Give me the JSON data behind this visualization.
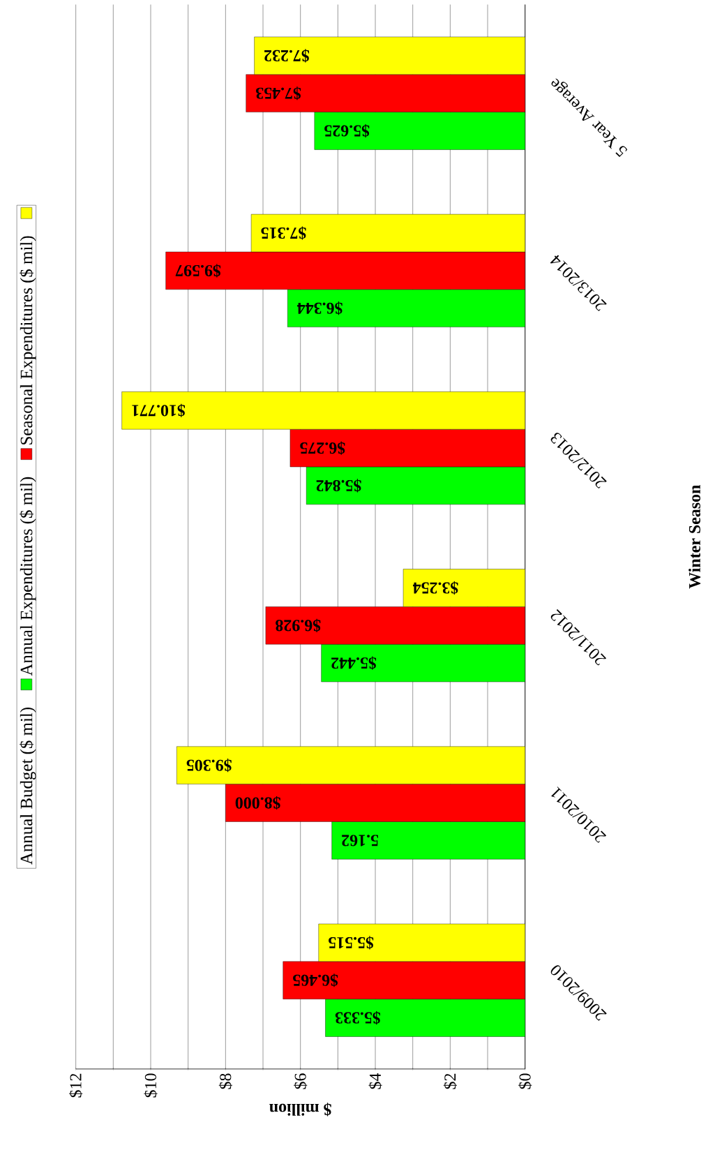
{
  "chart_data": {
    "type": "bar",
    "orientation": "horizontal",
    "categories": [
      "5 Year Average",
      "2013/2014",
      "2012/2013",
      "2011/2012",
      "2010/2011",
      "2009/2010"
    ],
    "series": [
      {
        "name": "Annual Budget ($ mil)",
        "color": "#00ff00",
        "values": [
          5.625,
          6.344,
          5.842,
          5.442,
          5.162,
          5.333
        ],
        "value_labels": [
          "$5.625",
          "$6.344",
          "$5.842",
          "$5.442",
          "5.162",
          "$5.333"
        ]
      },
      {
        "name": "Annual Expenditures ($ mil)",
        "color": "#ff0000",
        "values": [
          7.453,
          9.597,
          6.275,
          6.928,
          8.0,
          6.465
        ],
        "value_labels": [
          "$7.453",
          "$9.597",
          "$6.275",
          "$6.928",
          "$8.000",
          "$6.465"
        ]
      },
      {
        "name": "Seasonal Expenditures ($ mil)",
        "color": "#ffff00",
        "values": [
          7.232,
          7.315,
          10.771,
          3.254,
          9.305,
          5.515
        ],
        "value_labels": [
          "$7.232",
          "$7.315",
          "$10.771",
          "$3.254",
          "$9.305",
          "$5.515"
        ]
      }
    ],
    "xlim": [
      12,
      0
    ],
    "xticks": [
      {
        "value": 0,
        "label": "$0"
      },
      {
        "value": 1,
        "label": null
      },
      {
        "value": 2,
        "label": "$2"
      },
      {
        "value": 3,
        "label": null
      },
      {
        "value": 4,
        "label": "$4"
      },
      {
        "value": 5,
        "label": null
      },
      {
        "value": 6,
        "label": "$6"
      },
      {
        "value": 7,
        "label": null
      },
      {
        "value": 8,
        "label": "$8"
      },
      {
        "value": 9,
        "label": null
      },
      {
        "value": 10,
        "label": "$10"
      },
      {
        "value": 11,
        "label": null
      },
      {
        "value": 12,
        "label": "$12"
      }
    ],
    "xlabel": "$ million",
    "ylabel": "Winter Season",
    "grid": "x",
    "legend": "left"
  }
}
